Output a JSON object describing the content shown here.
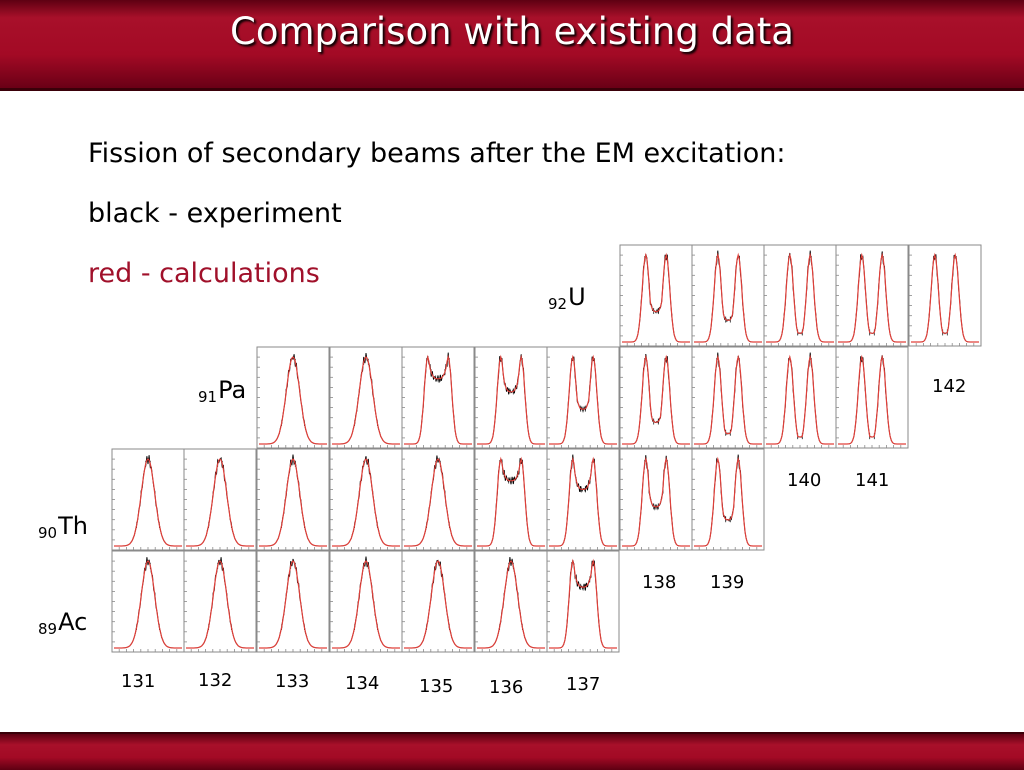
{
  "slide": {
    "title": "Comparison with existing data",
    "line1": "Fission of secondary beams after the EM excitation:",
    "line2": "black - experiment",
    "line3": "red - calculations"
  },
  "colors": {
    "title_bar": "#a30a25",
    "experiment": "#000000",
    "calculation": "#e0403a",
    "legend_red": "#a0102a"
  },
  "elements": [
    {
      "z": "92",
      "symbol": "U"
    },
    {
      "z": "91",
      "symbol": "Pa"
    },
    {
      "z": "90",
      "symbol": "Th"
    },
    {
      "z": "89",
      "symbol": "Ac"
    }
  ],
  "mass_labels": [
    "131",
    "132",
    "133",
    "134",
    "135",
    "136",
    "137",
    "138",
    "139",
    "140",
    "141",
    "142"
  ],
  "chart_data": {
    "type": "line",
    "description_rows": [
      "92U",
      "91Pa",
      "90Th",
      "89Ac"
    ],
    "panels": [
      {
        "element": "U",
        "mass": "138",
        "peaks": 2,
        "valley": 0.35
      },
      {
        "element": "U",
        "mass": "139",
        "peaks": 2,
        "valley": 0.25
      },
      {
        "element": "U",
        "mass": "140",
        "peaks": 2,
        "valley": 0.1
      },
      {
        "element": "U",
        "mass": "141",
        "peaks": 2,
        "valley": 0.1
      },
      {
        "element": "U",
        "mass": "142",
        "peaks": 2,
        "valley": 0.1
      },
      {
        "element": "Pa",
        "mass": "133",
        "peaks": 1,
        "valley": 1.0
      },
      {
        "element": "Pa",
        "mass": "134",
        "peaks": 1,
        "valley": 0.9
      },
      {
        "element": "Pa",
        "mass": "135",
        "peaks": 2,
        "valley": 0.75
      },
      {
        "element": "Pa",
        "mass": "136",
        "peaks": 2,
        "valley": 0.6
      },
      {
        "element": "Pa",
        "mass": "137",
        "peaks": 2,
        "valley": 0.4
      },
      {
        "element": "Pa",
        "mass": "138",
        "peaks": 2,
        "valley": 0.25
      },
      {
        "element": "Pa",
        "mass": "139",
        "peaks": 2,
        "valley": 0.12
      },
      {
        "element": "Pa",
        "mass": "140",
        "peaks": 2,
        "valley": 0.08
      },
      {
        "element": "Pa",
        "mass": "141",
        "peaks": 2,
        "valley": 0.08
      },
      {
        "element": "Th",
        "mass": "131",
        "peaks": 1,
        "valley": 1.0
      },
      {
        "element": "Th",
        "mass": "132",
        "peaks": 1,
        "valley": 1.0
      },
      {
        "element": "Th",
        "mass": "133",
        "peaks": 1,
        "valley": 1.0
      },
      {
        "element": "Th",
        "mass": "134",
        "peaks": 1,
        "valley": 1.0
      },
      {
        "element": "Th",
        "mass": "135",
        "peaks": 1,
        "valley": 0.9
      },
      {
        "element": "Th",
        "mass": "136",
        "peaks": 2,
        "valley": 0.75
      },
      {
        "element": "Th",
        "mass": "137",
        "peaks": 2,
        "valley": 0.65
      },
      {
        "element": "Th",
        "mass": "138",
        "peaks": 2,
        "valley": 0.45
      },
      {
        "element": "Th",
        "mass": "139",
        "peaks": 2,
        "valley": 0.3
      },
      {
        "element": "Ac",
        "mass": "131",
        "peaks": 1,
        "valley": 1.0
      },
      {
        "element": "Ac",
        "mass": "132",
        "peaks": 1,
        "valley": 1.0
      },
      {
        "element": "Ac",
        "mass": "133",
        "peaks": 1,
        "valley": 1.0
      },
      {
        "element": "Ac",
        "mass": "134",
        "peaks": 1,
        "valley": 1.0
      },
      {
        "element": "Ac",
        "mass": "135",
        "peaks": 1,
        "valley": 1.0
      },
      {
        "element": "Ac",
        "mass": "136",
        "peaks": 1,
        "valley": 0.9
      },
      {
        "element": "Ac",
        "mass": "137",
        "peaks": 2,
        "valley": 0.7
      }
    ]
  }
}
